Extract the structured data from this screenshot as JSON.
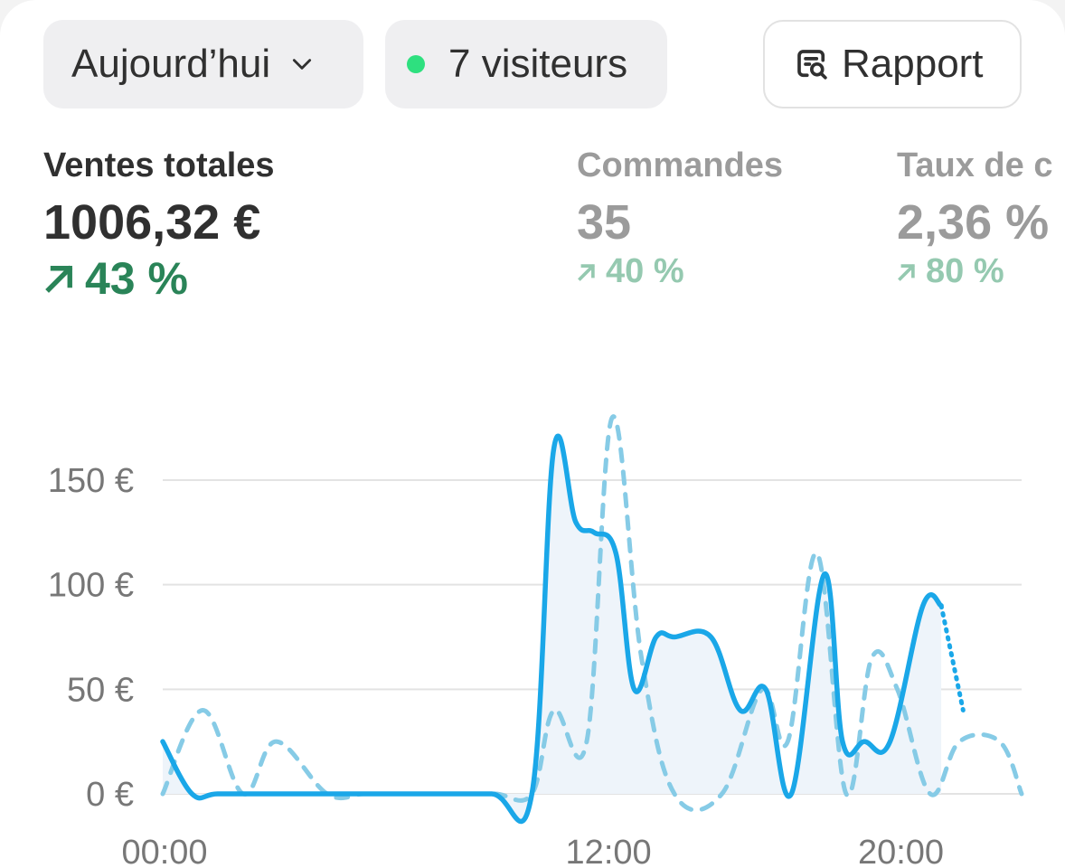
{
  "header": {
    "date_filter": "Aujourd’hui",
    "visitors": "7 visiteurs",
    "report_button": "Rapport",
    "live_dot_color": "#2ee07f"
  },
  "metrics": [
    {
      "label": "Ventes totales",
      "value": "1006,32 €",
      "change": "43 %"
    },
    {
      "label": "Commandes",
      "value": "35",
      "change": "40 %"
    },
    {
      "label": "Taux de c",
      "value": "2,36 %",
      "change": "80 %"
    }
  ],
  "icons": [
    "chevron-down-icon",
    "report-search-icon",
    "arrow-up-right-icon"
  ],
  "chart_data": {
    "type": "line",
    "y_tick_labels": [
      "150 €",
      "100 €",
      "50 €",
      "0 €"
    ],
    "y_ticks": [
      150,
      100,
      50,
      0
    ],
    "ylim": [
      0,
      180
    ],
    "x_tick_labels": [
      "00:00",
      "12:00",
      "20:00"
    ],
    "x_ticks": [
      0,
      12,
      20
    ],
    "xlim": [
      0,
      23.5
    ],
    "grid": true,
    "colors": {
      "current": "#1aa7e8",
      "previous": "#86cbe6",
      "area": "#eef4fa",
      "grid": "#e3e3e3"
    },
    "series": [
      {
        "style": "solid",
        "x": [
          0,
          0.8,
          1.5,
          3,
          5,
          7,
          9,
          10.1,
          10.7,
          11.3,
          11.8,
          12.4,
          12.9,
          13.5,
          14,
          15,
          15.8,
          16.5,
          17.2,
          18.1,
          18.6,
          19.2,
          19.9,
          20.8,
          21.3
        ],
        "y": [
          25,
          0,
          0,
          0,
          0,
          0,
          0,
          0,
          165,
          130,
          125,
          115,
          50,
          75,
          75,
          75,
          40,
          50,
          0,
          105,
          25,
          25,
          25,
          90,
          90
        ]
      },
      {
        "style": "dotted-projection",
        "x": [
          21.3,
          21.9
        ],
        "y": [
          90,
          40
        ]
      },
      {
        "style": "dashed",
        "x": [
          0,
          1.1,
          2.2,
          3.1,
          4.5,
          5.5,
          6.5,
          8,
          9.1,
          10.1,
          10.7,
          11.6,
          12.3,
          13.1,
          14,
          15.3,
          16.4,
          17.1,
          17.9,
          18.7,
          19.4,
          20.1,
          21,
          21.8,
          22.9,
          23.5
        ],
        "y": [
          0,
          40,
          0,
          25,
          0,
          0,
          0,
          0,
          0,
          0,
          40,
          25,
          180,
          65,
          0,
          0,
          50,
          25,
          115,
          0,
          65,
          50,
          0,
          25,
          25,
          0
        ]
      }
    ]
  }
}
